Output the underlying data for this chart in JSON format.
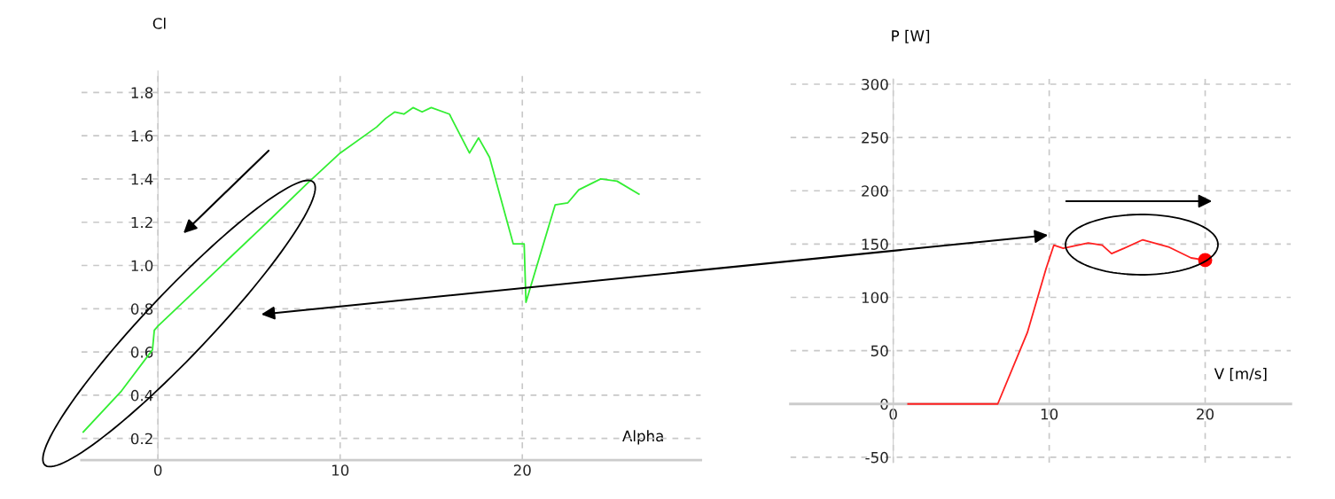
{
  "chart_data": [
    {
      "type": "line",
      "xlabel": "Alpha",
      "ylabel": "Cl",
      "xlim": [
        -4.2,
        29.8
      ],
      "ylim": [
        0.1,
        1.9
      ],
      "xticks": [
        0,
        10,
        20
      ],
      "yticks": [
        0.2,
        0.4,
        0.6,
        0.8,
        {
          "value": 1.0,
          "label": "1.0"
        },
        1.2,
        1.4,
        1.6,
        1.8
      ],
      "grid": true,
      "series": [
        {
          "color": "#33ee33",
          "x": [
            -4.1,
            -2,
            -0.3,
            -0.2,
            0,
            2,
            4,
            6,
            8.2,
            10,
            12,
            12.5,
            13,
            13.5,
            14,
            14.5,
            15,
            16,
            16.3,
            17.1,
            17.6,
            18.2,
            19.5,
            20.1,
            20.2,
            21.8,
            22.5,
            23.1,
            24.3,
            25.2,
            26.4
          ],
          "values": [
            0.23,
            0.42,
            0.61,
            0.7,
            0.72,
            0.88,
            1.04,
            1.2,
            1.38,
            1.52,
            1.64,
            1.68,
            1.71,
            1.7,
            1.73,
            1.71,
            1.73,
            1.7,
            1.65,
            1.52,
            1.59,
            1.5,
            1.1,
            1.1,
            0.83,
            1.28,
            1.29,
            1.35,
            1.4,
            1.39,
            1.33
          ]
        }
      ]
    },
    {
      "type": "line",
      "xlabel": "V [m/s]",
      "ylabel": "P [W]",
      "xlim": [
        -6.6,
        25.5
      ],
      "ylim": [
        -55,
        305
      ],
      "xticks": [
        0,
        10,
        20
      ],
      "yticks": [
        -50,
        0,
        50,
        100,
        150,
        200,
        250,
        300
      ],
      "grid": true,
      "series": [
        {
          "color": "#ff2020",
          "x": [
            0.95,
            6.7,
            8.6,
            9.8,
            10.3,
            10.9,
            12.5,
            13.4,
            14.0,
            14.8,
            16.0,
            17.7,
            19.1,
            20.0
          ],
          "values": [
            0,
            0,
            67,
            127,
            149,
            146,
            151,
            149,
            141,
            146,
            154,
            147,
            137,
            135
          ]
        },
        {
          "type": "scatter",
          "color": "#ff0000",
          "marker": "circle",
          "x": [
            20.0
          ],
          "values": [
            135
          ]
        }
      ]
    }
  ]
}
